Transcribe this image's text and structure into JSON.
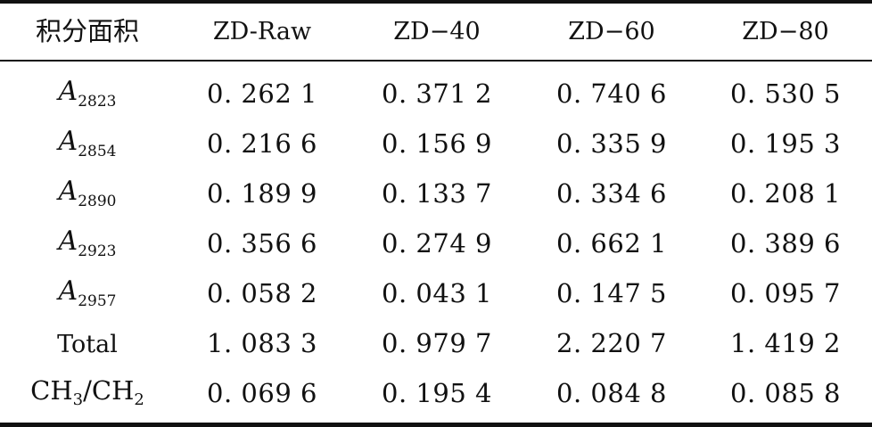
{
  "table": {
    "headers": [
      "积分面积",
      "ZD-Raw",
      "ZD−40",
      "ZD−60",
      "ZD−80"
    ],
    "rows": [
      {
        "label_base": "A",
        "label_sub": "2823",
        "values": [
          "0. 262 1",
          "0. 371 2",
          "0. 740 6",
          "0. 530 5"
        ]
      },
      {
        "label_base": "A",
        "label_sub": "2854",
        "values": [
          "0. 216 6",
          "0. 156 9",
          "0. 335 9",
          "0. 195 3"
        ]
      },
      {
        "label_base": "A",
        "label_sub": "2890",
        "values": [
          "0. 189 9",
          "0. 133 7",
          "0. 334 6",
          "0. 208 1"
        ]
      },
      {
        "label_base": "A",
        "label_sub": "2923",
        "values": [
          "0. 356 6",
          "0. 274 9",
          "0. 662 1",
          "0. 389 6"
        ]
      },
      {
        "label_base": "A",
        "label_sub": "2957",
        "values": [
          "0. 058 2",
          "0. 043 1",
          "0. 147 5",
          "0. 095 7"
        ]
      },
      {
        "label_text": "Total",
        "values": [
          "1. 083 3",
          "0. 979 7",
          "2. 220 7",
          "1. 419 2"
        ]
      },
      {
        "label_chem": {
          "p1": "CH",
          "s1": "3",
          "p2": "/CH",
          "s2": "2"
        },
        "values": [
          "0. 069 6",
          "0. 195 4",
          "0. 084 8",
          "0. 085 8"
        ]
      }
    ]
  }
}
